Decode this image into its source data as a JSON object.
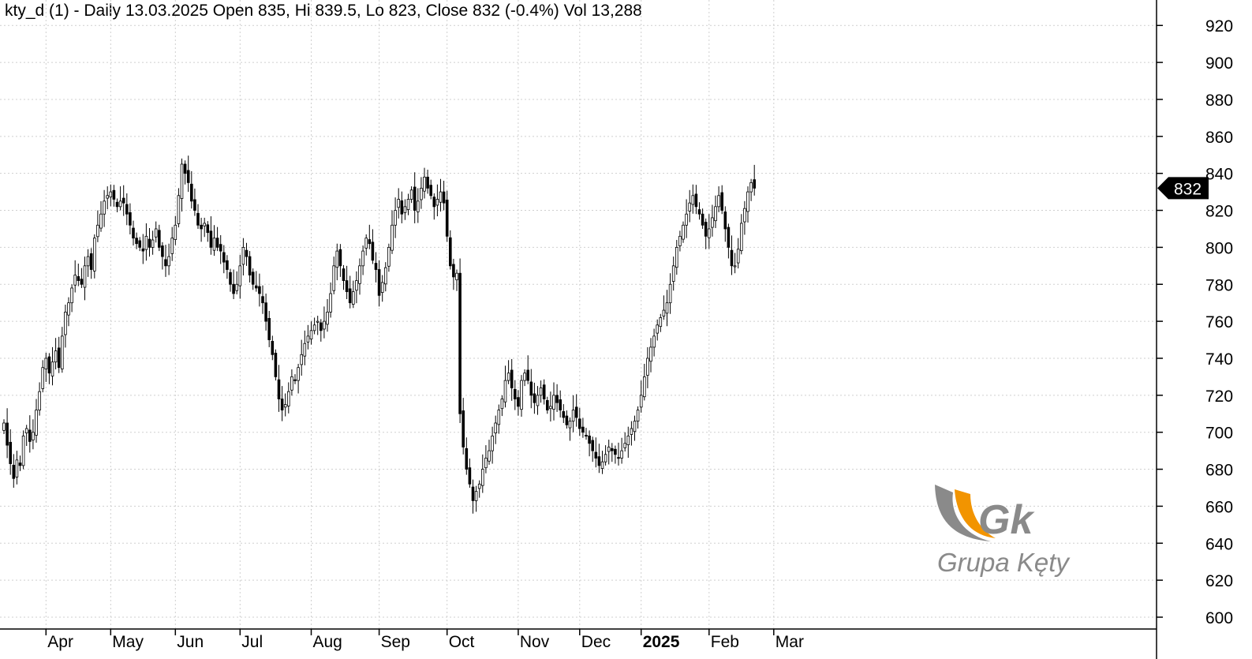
{
  "header": {
    "title": "kty_d (1) - Daily 13.03.2025 Open 835, Hi 839.5, Lo 823, Close 832 (-0.4%) Vol 13,288"
  },
  "logo": {
    "mark": "Gk",
    "name": "Grupa Kęty",
    "accent": "#f29400",
    "gray": "#8a8a8a"
  },
  "last_price_marker": "832",
  "chart_data": {
    "type": "candlestick",
    "instrument": "kty_d (1)",
    "interval": "Daily",
    "last_bar": {
      "date": "13.03.2025",
      "open": 835,
      "high": 839.5,
      "low": 823,
      "close": 832,
      "change_pct": -0.4,
      "volume": 13288
    },
    "y_axis": {
      "position": "right",
      "ylim": [
        592,
        925
      ],
      "ticks": [
        600,
        620,
        640,
        660,
        680,
        700,
        720,
        740,
        760,
        780,
        800,
        820,
        840,
        860,
        880,
        900,
        920
      ]
    },
    "x_axis": {
      "labels": [
        "Apr",
        "May",
        "Jun",
        "Jul",
        "Aug",
        "Sep",
        "Oct",
        "Nov",
        "Dec",
        "2025",
        "Feb",
        "Mar"
      ],
      "bold_labels": [
        "2025"
      ],
      "label_bar_index": [
        13,
        33,
        53,
        73,
        95,
        116,
        137,
        159,
        178,
        197,
        218,
        238
      ]
    },
    "grid": true,
    "colors": {
      "up_fill": "#ffffff",
      "down_fill": "#000000",
      "outline": "#000000",
      "grid": "#cfcfcf",
      "marker_bg": "#000000",
      "marker_fg": "#ffffff"
    },
    "closes": [
      705,
      693,
      683,
      675,
      685,
      682,
      698,
      702,
      695,
      700,
      712,
      722,
      735,
      740,
      732,
      738,
      744,
      735,
      752,
      765,
      770,
      778,
      785,
      782,
      780,
      790,
      795,
      788,
      805,
      812,
      818,
      825,
      828,
      830,
      826,
      822,
      825,
      824,
      818,
      812,
      805,
      802,
      800,
      798,
      806,
      800,
      804,
      810,
      800,
      795,
      790,
      795,
      805,
      812,
      828,
      845,
      840,
      835,
      825,
      820,
      812,
      810,
      813,
      808,
      800,
      805,
      800,
      798,
      792,
      788,
      780,
      775,
      780,
      790,
      800,
      795,
      785,
      780,
      778,
      775,
      770,
      760,
      750,
      742,
      730,
      718,
      712,
      715,
      722,
      730,
      728,
      735,
      742,
      748,
      752,
      755,
      758,
      760,
      755,
      760,
      765,
      775,
      790,
      798,
      790,
      782,
      776,
      770,
      776,
      782,
      790,
      798,
      805,
      802,
      793,
      788,
      774,
      781,
      789,
      800,
      812,
      820,
      826,
      818,
      822,
      826,
      831,
      820,
      825,
      832,
      838,
      832,
      828,
      822,
      826,
      830,
      824,
      806,
      790,
      784,
      786,
      710,
      692,
      680,
      672,
      663,
      668,
      672,
      680,
      686,
      690,
      698,
      705,
      712,
      718,
      728,
      732,
      724,
      718,
      714,
      728,
      732,
      728,
      720,
      716,
      720,
      724,
      718,
      712,
      714,
      720,
      716,
      712,
      708,
      704,
      706,
      712,
      708,
      702,
      700,
      698,
      694,
      690,
      686,
      682,
      684,
      688,
      692,
      690,
      688,
      686,
      690,
      694,
      698,
      702,
      706,
      712,
      720,
      730,
      740,
      746,
      752,
      758,
      762,
      766,
      770,
      780,
      790,
      800,
      806,
      812,
      818,
      824,
      828,
      822,
      818,
      812,
      806,
      810,
      816,
      822,
      828,
      820,
      810,
      800,
      790,
      790,
      799,
      813,
      821,
      830,
      835,
      832
    ]
  }
}
